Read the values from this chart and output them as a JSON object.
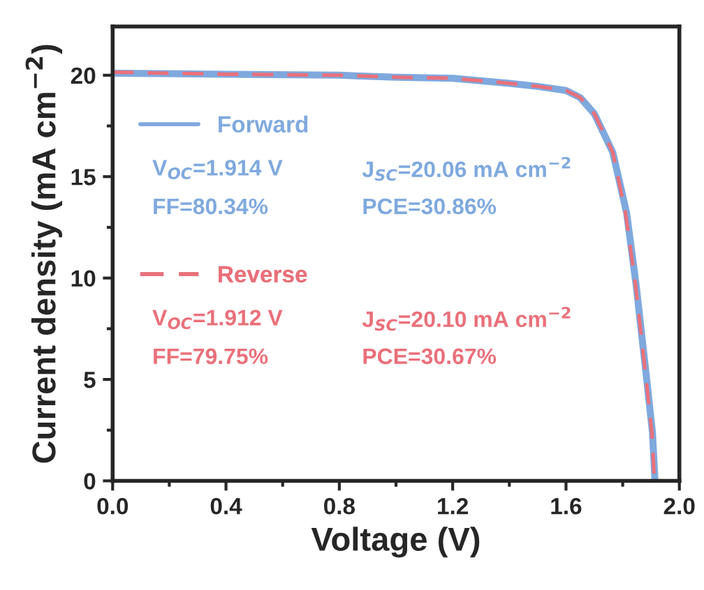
{
  "chart_data": {
    "type": "line",
    "xlabel": "Voltage (V)",
    "ylabel": "Current density (mA cm$^{−2}$)",
    "xlim": [
      0,
      2.0
    ],
    "ylim": [
      0,
      22.4
    ],
    "xticks": [
      {
        "value": 0,
        "label": "0.0"
      },
      0.4,
      0.8,
      1.2,
      1.6,
      {
        "value": 2.0,
        "label": "2.0"
      }
    ],
    "yticks": [
      0,
      5,
      10,
      15,
      20
    ],
    "grid": false,
    "legend": "left",
    "marker": "none",
    "series": [
      {
        "name": "Forward",
        "color": "#7fa9de",
        "line_style": "solid",
        "x": [
          0,
          0.4,
          0.8,
          1.0,
          1.2,
          1.4,
          1.5,
          1.6,
          1.65,
          1.7,
          1.765,
          1.814,
          1.847,
          1.88,
          1.905,
          1.914
        ],
        "values": [
          20.1,
          20.05,
          20.0,
          19.9,
          19.85,
          19.6,
          19.45,
          19.25,
          18.9,
          18.1,
          16.2,
          13.2,
          9.7,
          5.6,
          2.4,
          0
        ]
      },
      {
        "name": "Reverse",
        "color": "#e9707a",
        "line_style": "dashed",
        "x": [
          0,
          0.4,
          0.8,
          1.0,
          1.2,
          1.4,
          1.5,
          1.6,
          1.65,
          1.7,
          1.765,
          1.81,
          1.845,
          1.878,
          1.903,
          1.912
        ],
        "values": [
          20.15,
          20.05,
          20.0,
          19.9,
          19.85,
          19.6,
          19.45,
          19.25,
          18.9,
          18.1,
          16.2,
          13.2,
          9.7,
          5.6,
          2.4,
          0
        ]
      }
    ],
    "annotations": [
      "V$_{OC}$=1.914 V",
      "J$_{SC}$=20.06 mA cm$^{−2}$",
      "FF=80.34%",
      "PCE=30.86%",
      "V$_{OC}$=1.912 V",
      "J$_{SC}$=20.10 mA cm$^{−2}$",
      "FF=79.75%",
      "PCE=30.67%"
    ]
  }
}
